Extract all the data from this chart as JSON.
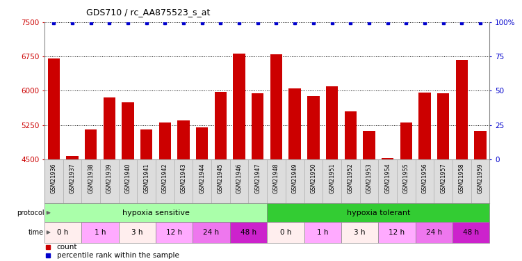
{
  "title": "GDS710 / rc_AA875523_s_at",
  "samples": [
    "GSM21936",
    "GSM21937",
    "GSM21938",
    "GSM21939",
    "GSM21940",
    "GSM21941",
    "GSM21942",
    "GSM21943",
    "GSM21944",
    "GSM21945",
    "GSM21946",
    "GSM21947",
    "GSM21948",
    "GSM21949",
    "GSM21950",
    "GSM21951",
    "GSM21952",
    "GSM21953",
    "GSM21954",
    "GSM21955",
    "GSM21956",
    "GSM21957",
    "GSM21958",
    "GSM21959"
  ],
  "counts": [
    6700,
    4570,
    5150,
    5850,
    5750,
    5150,
    5300,
    5350,
    5200,
    5975,
    6820,
    5950,
    6800,
    6060,
    5880,
    6100,
    5550,
    5130,
    4530,
    5300,
    5960,
    5950,
    6680,
    5130
  ],
  "bar_color": "#cc0000",
  "dot_color": "#0000cc",
  "baseline": 4500,
  "ylim_left": [
    4500,
    7500
  ],
  "yticks_left": [
    4500,
    5250,
    6000,
    6750,
    7500
  ],
  "ylim_right": [
    0,
    100
  ],
  "yticks_right": [
    0,
    25,
    50,
    75,
    100
  ],
  "yright_labels": [
    "0",
    "25",
    "50",
    "75",
    "100%"
  ],
  "protocol_groups": [
    {
      "label": "hypoxia sensitive",
      "start": 0,
      "end": 11,
      "color": "#aaffaa"
    },
    {
      "label": "hypoxia tolerant",
      "start": 12,
      "end": 23,
      "color": "#33cc33"
    }
  ],
  "time_groups": [
    {
      "label": "0 h",
      "start": 0,
      "end": 1,
      "color": "#ffeeee"
    },
    {
      "label": "1 h",
      "start": 2,
      "end": 3,
      "color": "#ffaaff"
    },
    {
      "label": "3 h",
      "start": 4,
      "end": 5,
      "color": "#ffeeee"
    },
    {
      "label": "12 h",
      "start": 6,
      "end": 7,
      "color": "#ffaaff"
    },
    {
      "label": "24 h",
      "start": 8,
      "end": 9,
      "color": "#ee77ee"
    },
    {
      "label": "48 h",
      "start": 10,
      "end": 11,
      "color": "#cc22cc"
    },
    {
      "label": "0 h",
      "start": 12,
      "end": 13,
      "color": "#ffeeee"
    },
    {
      "label": "1 h",
      "start": 14,
      "end": 15,
      "color": "#ffaaff"
    },
    {
      "label": "3 h",
      "start": 16,
      "end": 17,
      "color": "#ffeeee"
    },
    {
      "label": "12 h",
      "start": 18,
      "end": 19,
      "color": "#ffaaff"
    },
    {
      "label": "24 h",
      "start": 20,
      "end": 21,
      "color": "#ee77ee"
    },
    {
      "label": "48 h",
      "start": 22,
      "end": 23,
      "color": "#cc22cc"
    }
  ]
}
